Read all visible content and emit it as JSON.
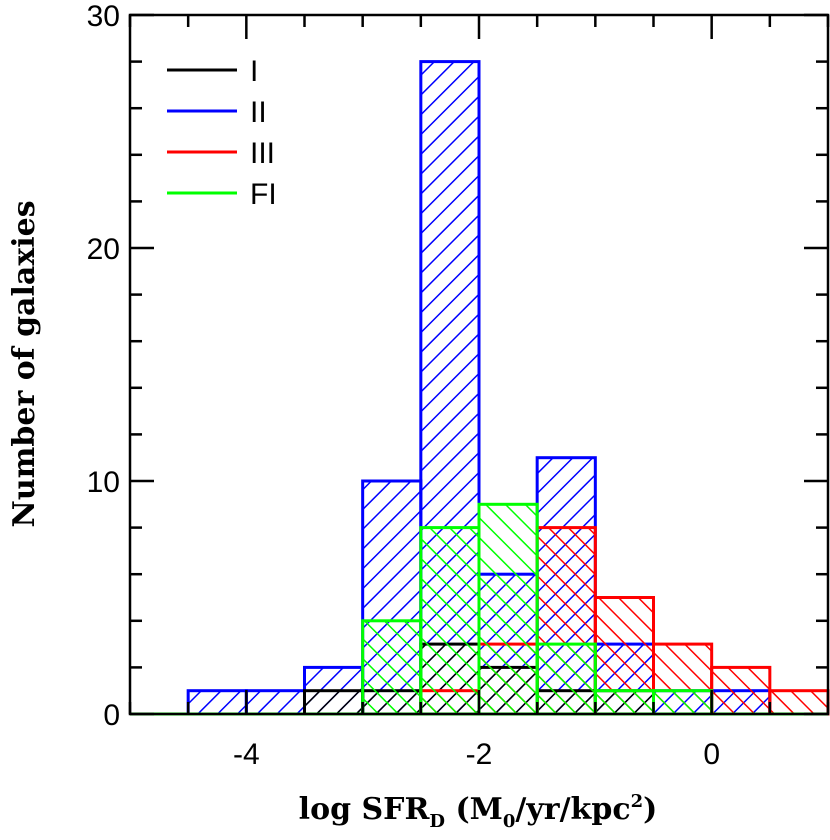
{
  "chart_data": {
    "type": "bar",
    "xlabel": "log SFR",
    "xlabel_sub": "D",
    "xlabel_units_open": " (M",
    "xlabel_units_sub": "0",
    "xlabel_units_close": "/yr/kpc",
    "xlabel_units_sup": "2",
    "xlabel_units_end": ")",
    "ylabel": "Number of galaxies",
    "xlim": [
      -5,
      1
    ],
    "ylim": [
      0,
      30
    ],
    "x_ticks": [
      {
        "value": -4,
        "label": "-4"
      },
      {
        "value": -2,
        "label": "-2"
      },
      {
        "value": 0,
        "label": "0"
      }
    ],
    "y_ticks": [
      {
        "value": 0,
        "label": "0"
      },
      {
        "value": 10,
        "label": "10"
      },
      {
        "value": 20,
        "label": "20"
      },
      {
        "value": 30,
        "label": "30"
      }
    ],
    "bin_edges": [
      -5,
      -4.5,
      -4,
      -3.5,
      -3,
      -2.5,
      -2,
      -1.5,
      -1,
      -0.5,
      0,
      0.5,
      1
    ],
    "legend_position": "top-left",
    "series": [
      {
        "name": "I",
        "color": "#000000",
        "hatch": "forward",
        "values": [
          0,
          0,
          0,
          1,
          1,
          3,
          2,
          1,
          1,
          0,
          0,
          0
        ]
      },
      {
        "name": "II",
        "color": "#0000ff",
        "hatch": "forward",
        "values": [
          0,
          1,
          1,
          2,
          10,
          28,
          6,
          11,
          3,
          1,
          1,
          0
        ]
      },
      {
        "name": "III",
        "color": "#ff0000",
        "hatch": "backward",
        "values": [
          0,
          0,
          0,
          0,
          0,
          1,
          3,
          8,
          5,
          3,
          2,
          1
        ]
      },
      {
        "name": "FI",
        "color": "#00ff00",
        "hatch": "backward",
        "values": [
          0,
          0,
          0,
          0,
          4,
          8,
          9,
          3,
          1,
          1,
          0,
          0
        ]
      }
    ]
  }
}
